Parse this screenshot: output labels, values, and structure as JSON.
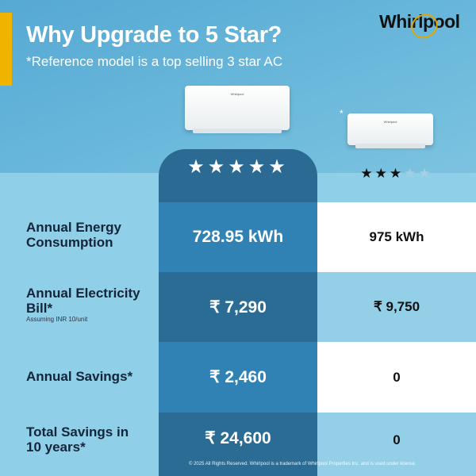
{
  "header": {
    "title": "Why Upgrade to 5 Star?",
    "subtitle": "*Reference model is a top selling 3 star AC",
    "brand": "Whirlpool",
    "reference_mark": "*"
  },
  "colors": {
    "accent": "#f0b400",
    "dark_column": "#2b6c95",
    "mid_column": "#3182b4",
    "background": "#8fcfe8"
  },
  "columns": {
    "five_star": {
      "rating": 5,
      "stars": "★★★★★"
    },
    "three_star": {
      "rating": 3,
      "out_of": 5
    }
  },
  "rows": [
    {
      "label": "Annual Energy Consumption",
      "five_star": "728.95 kWh",
      "three_star": "975 kWh"
    },
    {
      "label": "Annual Electricity Bill*",
      "note": "Assuming INR 10/unit",
      "five_star": "₹ 7,290",
      "three_star": "₹ 9,750"
    },
    {
      "label": "Annual Savings*",
      "five_star": "₹ 2,460",
      "three_star": "0"
    },
    {
      "label": "Total Savings in 10 years*",
      "five_star": "₹ 24,600",
      "three_star": "0"
    }
  ],
  "footer": "© 2025 All Rights Reserved. Whirlpool is a trademark of Whirlpool Properties Inc. and is used under license."
}
